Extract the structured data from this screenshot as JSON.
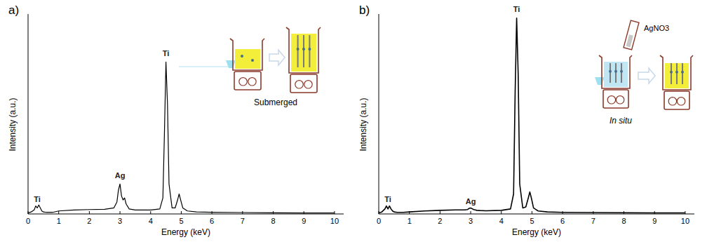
{
  "chart_data": [
    {
      "type": "line",
      "title": "a)",
      "x_label": "Energy (keV)",
      "y_label": "Intensity (a.u.)",
      "x": [
        0,
        0.1,
        0.2,
        0.25,
        0.3,
        0.35,
        0.4,
        0.45,
        0.5,
        0.6,
        0.8,
        1.0,
        1.5,
        2.0,
        2.5,
        2.8,
        2.9,
        2.95,
        3.0,
        3.05,
        3.1,
        3.15,
        3.2,
        3.3,
        3.5,
        4.0,
        4.3,
        4.4,
        4.45,
        4.5,
        4.55,
        4.6,
        4.7,
        4.8,
        4.88,
        4.93,
        4.98,
        5.05,
        5.2,
        5.5,
        6,
        7,
        8,
        9,
        10
      ],
      "series": [
        {
          "color": "#000000",
          "values": [
            0.5,
            1,
            2,
            4,
            3,
            4.5,
            3,
            1.5,
            1,
            0.8,
            0.8,
            1.5,
            2,
            2.2,
            2.3,
            3,
            6,
            12,
            15,
            9,
            7,
            8,
            5,
            2.5,
            2,
            2,
            2.5,
            8,
            40,
            76,
            55,
            15,
            3,
            3,
            7,
            10,
            7,
            3,
            1.5,
            1,
            0.8,
            0.7,
            0.6,
            0.5,
            0.5
          ]
        }
      ],
      "xlim": [
        0,
        10.3
      ],
      "ylim": [
        0,
        100
      ],
      "xticks": [
        0,
        1,
        2,
        3,
        4,
        5,
        6,
        7,
        8,
        9,
        10
      ],
      "tick_labels": "x",
      "annotations": [
        {
          "text": "Ti",
          "x": 0.3,
          "y": 6
        },
        {
          "text": "Ag",
          "x": 3.0,
          "y": 18
        },
        {
          "text": "Ti",
          "x": 4.5,
          "y": 79
        }
      ],
      "inset": {
        "caption": "Submerged"
      }
    },
    {
      "type": "line",
      "title": "b)",
      "x_label": "Energy (keV)",
      "y_label": "Intensity (a.u.)",
      "x": [
        0,
        0.1,
        0.2,
        0.25,
        0.3,
        0.35,
        0.4,
        0.45,
        0.5,
        0.6,
        0.8,
        1.0,
        1.5,
        2.0,
        2.5,
        2.8,
        2.9,
        2.95,
        3.0,
        3.05,
        3.1,
        3.15,
        3.2,
        3.3,
        3.5,
        4.0,
        4.3,
        4.4,
        4.45,
        4.5,
        4.55,
        4.6,
        4.7,
        4.8,
        4.88,
        4.93,
        4.98,
        5.05,
        5.2,
        5.5,
        6,
        7,
        8,
        9,
        10
      ],
      "series": [
        {
          "color": "#000000",
          "values": [
            0.5,
            1,
            2.5,
            4,
            2.5,
            4,
            2.5,
            1.5,
            1,
            0.8,
            0.8,
            1,
            1.5,
            1.8,
            2,
            2,
            2.2,
            2.8,
            3,
            2.6,
            2.2,
            2,
            1.8,
            1.7,
            1.6,
            1.8,
            2.5,
            10,
            60,
            98,
            70,
            15,
            3,
            3.5,
            8,
            11,
            8,
            3,
            1.5,
            1,
            0.8,
            0.7,
            0.6,
            0.5,
            0.5
          ]
        }
      ],
      "xlim": [
        0,
        10.3
      ],
      "ylim": [
        0,
        100
      ],
      "xticks": [
        0,
        1,
        2,
        3,
        4,
        5,
        6,
        7,
        8,
        9,
        10
      ],
      "tick_labels": "x",
      "annotations": [
        {
          "text": "Ti",
          "x": 0.3,
          "y": 6
        },
        {
          "text": "Ag",
          "x": 3.0,
          "y": 5
        },
        {
          "text": "Ti",
          "x": 4.5,
          "y": 101
        }
      ],
      "inset": {
        "caption": "In situ",
        "reagent": "AgNO3"
      }
    }
  ]
}
